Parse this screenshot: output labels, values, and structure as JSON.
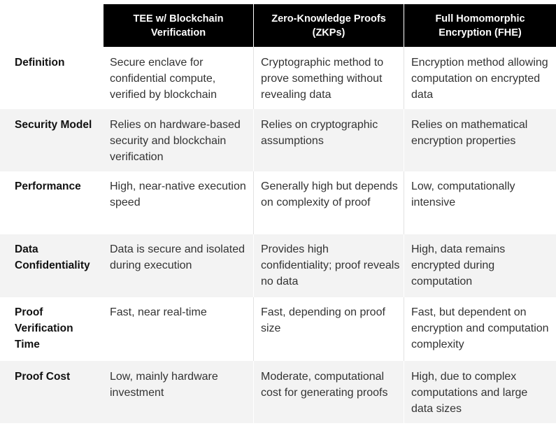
{
  "header": {
    "col1": "TEE w/ Blockchain Verification",
    "col2": "Zero-Knowledge Proofs (ZKPs)",
    "col3": "Full Homomorphic Encryption (FHE)"
  },
  "rows": [
    {
      "label": "Definition",
      "c1": "Secure enclave for confidential compute, verified by blockchain",
      "c2": "Cryptographic method to prove something without revealing data",
      "c3": "Encryption method allowing computation on encrypted data"
    },
    {
      "label": "Security Model",
      "c1": "Relies on hardware-based security and blockchain verification",
      "c2": "Relies on cryptographic assumptions",
      "c3": "Relies on mathematical encryption properties"
    },
    {
      "label": "Performance",
      "c1": "High, near-native execution speed",
      "c2": "Generally high but depends on complexity of proof",
      "c3": "Low, computationally intensive"
    },
    {
      "label": "Data Confidentiality",
      "c1": "Data is secure and isolated during execution",
      "c2": "Provides high confidentiality; proof reveals no data",
      "c3": "High, data remains encrypted during computation"
    },
    {
      "label": "Proof Verification Time",
      "c1": "Fast, near real-time",
      "c2": "Fast, depending on proof size",
      "c3": "Fast, but dependent on encryption and computation complexity"
    },
    {
      "label": "Proof Cost",
      "c1": "Low, mainly hardware investment",
      "c2": "Moderate, computational cost for generating proofs",
      "c3": "High, due to complex computations and large data sizes"
    }
  ]
}
